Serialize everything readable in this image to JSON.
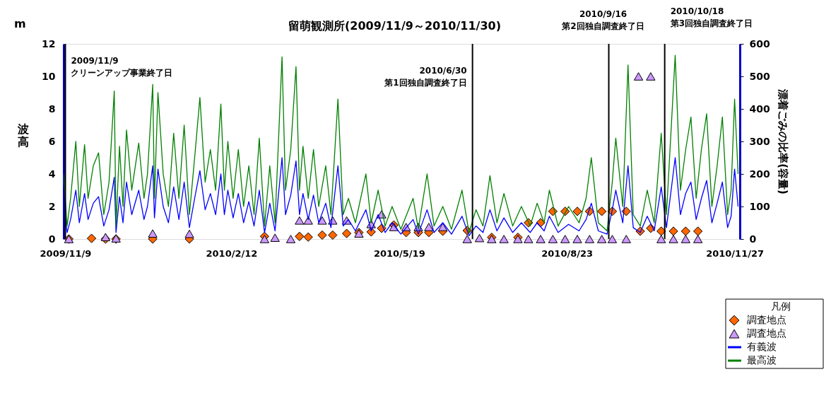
{
  "chart_data": {
    "type": "line",
    "title": "留萌観測所(2009/11/9～2010/11/30)",
    "ylabel": "波高",
    "y2label": "漂着ごみの比率(容量)",
    "legend_title": "凡例",
    "legend": "bottom right",
    "grid": false,
    "annotations": [
      "m"
    ],
    "xlim": [
      "2009-11-08",
      "2010-11-30"
    ],
    "xticks": [
      {
        "value": "2009-11-09",
        "label": "2009/11/9"
      },
      {
        "value": "2010-02-12",
        "label": "2010/2/12"
      },
      {
        "value": "2010-05-19",
        "label": "2010/5/19"
      },
      {
        "value": "2010-08-23",
        "label": "2010/8/23"
      },
      {
        "value": "2010-11-27",
        "label": "2010/11/27"
      }
    ],
    "ylim": [
      0,
      12
    ],
    "yticks": [
      0,
      2,
      4,
      6,
      8,
      10,
      12
    ],
    "y2lim": [
      0,
      600
    ],
    "y2ticks": [
      0,
      100,
      200,
      300,
      400,
      500,
      600
    ],
    "ref_lines": [
      {
        "axis": "x",
        "value": "2009-11-09",
        "label": "2009/11/9\nクリーンアップ事業終了日",
        "color": "#000000"
      },
      {
        "axis": "x",
        "value": "2010-06-30",
        "label": "2010/6/30\n第1回独自調査終了日",
        "color": "#000000"
      },
      {
        "axis": "x",
        "value": "2010-09-16",
        "label": "2010/9/16\n第2回独自調査終了日",
        "color": "#000000"
      },
      {
        "axis": "x",
        "value": "2010-10-18",
        "label": "2010/10/18\n第3回独自調査終了日",
        "color": "#000000"
      }
    ],
    "x": [
      "2009-11-08",
      "2009-11-10",
      "2009-11-12",
      "2009-11-15",
      "2009-11-17",
      "2009-11-20",
      "2009-11-22",
      "2009-11-25",
      "2009-11-28",
      "2009-12-01",
      "2009-12-04",
      "2009-12-07",
      "2009-12-08",
      "2009-12-10",
      "2009-12-12",
      "2009-12-14",
      "2009-12-17",
      "2009-12-21",
      "2009-12-24",
      "2009-12-26",
      "2009-12-29",
      "2009-12-30",
      "2010-01-01",
      "2010-01-04",
      "2010-01-07",
      "2010-01-10",
      "2010-01-13",
      "2010-01-16",
      "2010-01-19",
      "2010-01-22",
      "2010-01-25",
      "2010-01-28",
      "2010-01-31",
      "2010-02-03",
      "2010-02-06",
      "2010-02-08",
      "2010-02-10",
      "2010-02-13",
      "2010-02-16",
      "2010-02-19",
      "2010-02-22",
      "2010-02-25",
      "2010-02-28",
      "2010-03-03",
      "2010-03-06",
      "2010-03-09",
      "2010-03-13",
      "2010-03-15",
      "2010-03-18",
      "2010-03-21",
      "2010-03-23",
      "2010-03-25",
      "2010-03-28",
      "2010-03-31",
      "2010-04-03",
      "2010-04-07",
      "2010-04-10",
      "2010-04-14",
      "2010-04-17",
      "2010-04-20",
      "2010-04-24",
      "2010-04-30",
      "2010-05-03",
      "2010-05-07",
      "2010-05-11",
      "2010-05-15",
      "2010-05-20",
      "2010-05-27",
      "2010-05-30",
      "2010-06-04",
      "2010-06-08",
      "2010-06-13",
      "2010-06-18",
      "2010-06-24",
      "2010-06-28",
      "2010-07-02",
      "2010-07-06",
      "2010-07-10",
      "2010-07-14",
      "2010-07-18",
      "2010-07-23",
      "2010-07-28",
      "2010-08-02",
      "2010-08-06",
      "2010-08-10",
      "2010-08-13",
      "2010-08-18",
      "2010-08-24",
      "2010-08-30",
      "2010-09-03",
      "2010-09-06",
      "2010-09-10",
      "2010-09-15",
      "2010-09-18",
      "2010-09-20",
      "2010-09-24",
      "2010-09-27",
      "2010-09-30",
      "2010-10-04",
      "2010-10-08",
      "2010-10-12",
      "2010-10-16",
      "2010-10-19",
      "2010-10-24",
      "2010-10-27",
      "2010-10-30",
      "2010-11-02",
      "2010-11-05",
      "2010-11-08",
      "2010-11-11",
      "2010-11-14",
      "2010-11-17",
      "2010-11-20",
      "2010-11-23",
      "2010-11-25",
      "2010-11-27",
      "2010-11-29"
    ],
    "series": [
      {
        "name": "調査地点",
        "type": "scatter",
        "axis": "y2",
        "marker": "diamond",
        "color": "#ff6600",
        "x": [
          "2009-11-11",
          "2009-11-24",
          "2009-12-02",
          "2009-12-08",
          "2009-12-29",
          "2010-01-19",
          "2010-03-03",
          "2010-03-23",
          "2010-03-28",
          "2010-04-05",
          "2010-04-11",
          "2010-04-19",
          "2010-04-26",
          "2010-05-03",
          "2010-05-09",
          "2010-05-16",
          "2010-05-23",
          "2010-05-30",
          "2010-06-05",
          "2010-06-13",
          "2010-06-27",
          "2010-07-11",
          "2010-07-26",
          "2010-08-01",
          "2010-08-08",
          "2010-08-15",
          "2010-08-22",
          "2010-08-29",
          "2010-09-05",
          "2010-09-12",
          "2010-09-18",
          "2010-09-26",
          "2010-10-04",
          "2010-10-10",
          "2010-10-16",
          "2010-10-23",
          "2010-10-30",
          "2010-11-06"
        ],
        "values": [
          0,
          2,
          0,
          0,
          0,
          0,
          8,
          8,
          6,
          12,
          12,
          17,
          20,
          22,
          33,
          43,
          20,
          20,
          20,
          24,
          26,
          5,
          5,
          50,
          50,
          85,
          85,
          85,
          85,
          85,
          85,
          85,
          24,
          33,
          24,
          24,
          24,
          24
        ]
      },
      {
        "name": "調査地点",
        "type": "scatter",
        "axis": "y2",
        "marker": "triangle",
        "color": "#cc99ff",
        "x": [
          "2009-11-11",
          "2009-12-02",
          "2009-12-08",
          "2009-12-29",
          "2010-01-19",
          "2010-03-03",
          "2010-03-09",
          "2010-03-18",
          "2010-03-23",
          "2010-03-28",
          "2010-04-05",
          "2010-04-11",
          "2010-04-19",
          "2010-04-26",
          "2010-05-03",
          "2010-05-09",
          "2010-05-16",
          "2010-05-23",
          "2010-05-30",
          "2010-06-05",
          "2010-06-13",
          "2010-06-27",
          "2010-07-04",
          "2010-07-11",
          "2010-07-18",
          "2010-07-26",
          "2010-08-01",
          "2010-08-08",
          "2010-08-15",
          "2010-08-22",
          "2010-08-29",
          "2010-09-05",
          "2010-09-12",
          "2010-09-18",
          "2010-09-26",
          "2010-10-03",
          "2010-10-10",
          "2010-10-16",
          "2010-10-23",
          "2010-10-30",
          "2010-11-06"
        ],
        "values": [
          0,
          6,
          2,
          17,
          16,
          0,
          4,
          0,
          57,
          57,
          57,
          57,
          57,
          17,
          46,
          76,
          37,
          37,
          37,
          37,
          37,
          0,
          3,
          0,
          0,
          0,
          0,
          0,
          0,
          0,
          0,
          0,
          0,
          0,
          0,
          500,
          500,
          0,
          0,
          0,
          0
        ]
      },
      {
        "name": "有義波",
        "color": "#0000ff",
        "values": [
          2.2,
          0.4,
          1.2,
          3.0,
          1.0,
          2.8,
          1.2,
          2.2,
          2.6,
          0.8,
          1.8,
          3.8,
          0.4,
          2.6,
          1.0,
          3.5,
          1.5,
          3.0,
          1.2,
          2.0,
          4.5,
          1.3,
          4.3,
          2.0,
          1.0,
          3.2,
          1.2,
          3.5,
          0.7,
          2.5,
          4.2,
          1.8,
          2.8,
          1.5,
          4.0,
          1.5,
          3.0,
          1.3,
          2.8,
          1.0,
          2.3,
          0.8,
          3.0,
          0.4,
          2.2,
          0.5,
          5.0,
          1.5,
          2.7,
          4.8,
          1.5,
          2.8,
          1.2,
          2.7,
          1.0,
          2.2,
          0.7,
          4.5,
          0.8,
          1.2,
          0.5,
          1.8,
          0.5,
          1.5,
          0.4,
          1.0,
          0.3,
          1.2,
          0.3,
          1.8,
          0.4,
          1.0,
          0.3,
          1.4,
          0.2,
          0.8,
          0.4,
          1.8,
          0.5,
          1.3,
          0.4,
          1.0,
          0.4,
          1.0,
          0.5,
          1.4,
          0.4,
          0.9,
          0.5,
          1.2,
          2.2,
          0.5,
          0.3,
          1.8,
          3.0,
          1.0,
          4.5,
          0.7,
          0.4,
          1.4,
          0.5,
          3.2,
          0.7,
          5.0,
          1.5,
          2.8,
          3.5,
          1.2,
          2.5,
          3.6,
          1.0,
          2.2,
          3.5,
          0.7,
          1.4,
          4.3,
          2.0
        ]
      },
      {
        "name": "最高波",
        "color": "#008000",
        "values": [
          4.0,
          0.8,
          2.5,
          6.0,
          2.0,
          5.8,
          2.5,
          4.5,
          5.3,
          1.5,
          3.5,
          9.1,
          0.8,
          5.7,
          2.0,
          6.7,
          3.0,
          5.9,
          2.5,
          4.0,
          9.5,
          2.5,
          9.0,
          4.0,
          2.0,
          6.5,
          2.5,
          7.0,
          1.5,
          5.0,
          8.7,
          3.5,
          5.5,
          3.0,
          8.3,
          3.0,
          6.0,
          2.5,
          5.5,
          2.0,
          4.5,
          1.5,
          6.2,
          0.8,
          4.5,
          1.0,
          11.2,
          3.0,
          5.5,
          10.6,
          3.0,
          5.7,
          2.5,
          5.5,
          2.0,
          4.5,
          1.5,
          8.6,
          1.5,
          2.5,
          1.0,
          4.0,
          1.0,
          3.0,
          0.8,
          2.0,
          0.6,
          2.5,
          0.6,
          4.0,
          0.8,
          2.0,
          0.6,
          3.0,
          0.4,
          1.8,
          0.8,
          3.9,
          1.0,
          2.8,
          0.8,
          2.0,
          0.8,
          2.2,
          1.0,
          3.0,
          0.8,
          2.0,
          1.0,
          2.5,
          5.0,
          1.0,
          0.5,
          3.5,
          6.2,
          2.0,
          10.7,
          1.5,
          0.8,
          3.0,
          1.0,
          6.5,
          1.5,
          11.3,
          3.0,
          5.5,
          7.5,
          2.5,
          5.5,
          7.7,
          2.0,
          4.5,
          7.5,
          1.5,
          3.0,
          8.6,
          4.0
        ]
      }
    ]
  }
}
